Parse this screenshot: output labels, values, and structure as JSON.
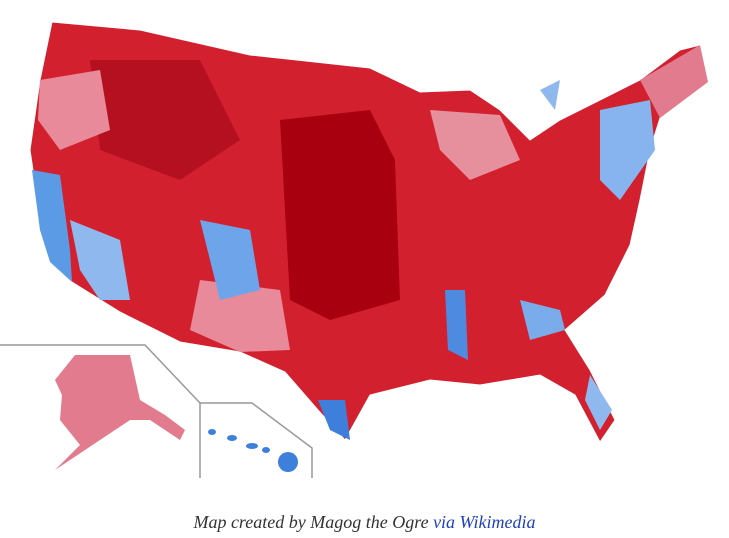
{
  "caption": {
    "text": "Map created by Magog the Ogre",
    "link": "via Wikimedia"
  }
}
